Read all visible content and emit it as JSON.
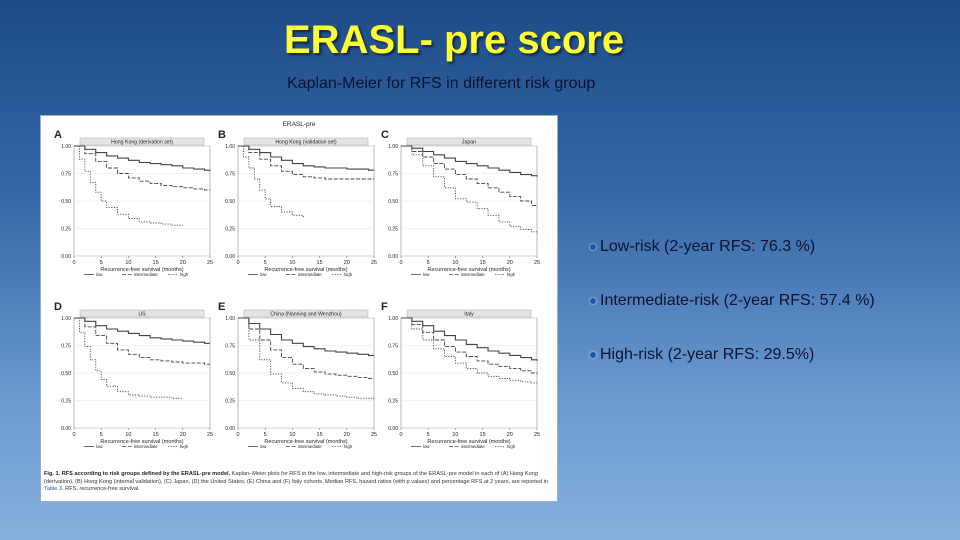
{
  "slide": {
    "title": "ERASL- pre score",
    "subtitle": "Kaplan-Meier for RFS in different risk group"
  },
  "bullets": [
    "Low-risk (2-year RFS: 76.3 %)",
    "Intermediate-risk (2-year RFS: 57.4 %)",
    "High-risk (2-year RFS: 29.5%)"
  ],
  "figure": {
    "header": "ERASL-pre",
    "caption_bold": "Fig. 1. RFS according to risk groups defined by the ERASL-pre model.",
    "caption_text_1": "Kaplan–Meier plots for RFS in the low, intermediate and high-risk groups of the ERASL-pre model in each of (A) Hong Kong (derivation), (B) Hong Kong (internal validation), (C) Japan, (D) the United States, (E) China and (F) Italy cohorts. Median RFS, hazard ratios (with p values) and percentage RFS at 2 years, are reported in",
    "caption_ref": "Table 3",
    "caption_text_2": ". RFS, recurrence-free survival."
  },
  "colors": {
    "title": "#ffff33",
    "curve": "#444444"
  },
  "chart_data": [
    {
      "type": "line",
      "panel": "A",
      "title": "Hong Kong (derivation set)",
      "xlabel": "Recurrence-free survival (months)",
      "ylabel": "",
      "xlim": [
        0,
        25
      ],
      "ylim": [
        0,
        1
      ],
      "xticks": [
        "0",
        "5",
        "10",
        "15",
        "20",
        "25"
      ],
      "yticks": [
        "0.00",
        "0.25",
        "0.50",
        "0.75",
        "1.00"
      ],
      "legend": [
        "low",
        "intermediate",
        "high"
      ],
      "series": [
        {
          "name": "low",
          "x": [
            0,
            2,
            4,
            6,
            8,
            10,
            12,
            14,
            16,
            18,
            20,
            22,
            24,
            25
          ],
          "y": [
            1.0,
            0.97,
            0.94,
            0.91,
            0.89,
            0.87,
            0.85,
            0.84,
            0.83,
            0.82,
            0.8,
            0.79,
            0.78,
            0.77
          ]
        },
        {
          "name": "intermediate",
          "x": [
            0,
            2,
            4,
            6,
            8,
            10,
            12,
            14,
            16,
            18,
            20,
            22,
            24,
            25
          ],
          "y": [
            1.0,
            0.93,
            0.86,
            0.8,
            0.75,
            0.71,
            0.68,
            0.66,
            0.64,
            0.63,
            0.62,
            0.61,
            0.6,
            0.6
          ]
        },
        {
          "name": "high",
          "x": [
            0,
            1,
            2,
            3,
            4,
            5,
            6,
            8,
            10,
            12,
            14,
            16,
            18,
            20
          ],
          "y": [
            1.0,
            0.88,
            0.77,
            0.67,
            0.58,
            0.5,
            0.44,
            0.38,
            0.34,
            0.31,
            0.3,
            0.29,
            0.28,
            0.28
          ]
        }
      ]
    },
    {
      "type": "line",
      "panel": "B",
      "title": "Hong Kong (validation set)",
      "xlabel": "Recurrence-free survival (months)",
      "ylabel": "",
      "xlim": [
        0,
        25
      ],
      "ylim": [
        0,
        1
      ],
      "xticks": [
        "0",
        "5",
        "10",
        "15",
        "20",
        "25"
      ],
      "yticks": [
        "0.00",
        "0.25",
        "0.50",
        "0.75",
        "1.00"
      ],
      "legend": [
        "low",
        "intermediate",
        "high"
      ],
      "series": [
        {
          "name": "low",
          "x": [
            0,
            2,
            4,
            6,
            8,
            10,
            12,
            14,
            16,
            18,
            20,
            22,
            24,
            25
          ],
          "y": [
            1.0,
            0.97,
            0.94,
            0.9,
            0.87,
            0.84,
            0.82,
            0.81,
            0.8,
            0.8,
            0.79,
            0.79,
            0.78,
            0.78
          ]
        },
        {
          "name": "intermediate",
          "x": [
            0,
            2,
            4,
            6,
            8,
            10,
            12,
            14,
            16,
            18,
            20,
            22,
            24,
            25
          ],
          "y": [
            1.0,
            0.94,
            0.88,
            0.82,
            0.77,
            0.74,
            0.72,
            0.71,
            0.7,
            0.7,
            0.7,
            0.7,
            0.7,
            0.7
          ]
        },
        {
          "name": "high",
          "x": [
            0,
            1,
            2,
            3,
            4,
            5,
            6,
            8,
            10,
            12
          ],
          "y": [
            1.0,
            0.9,
            0.8,
            0.7,
            0.6,
            0.52,
            0.45,
            0.4,
            0.37,
            0.35
          ]
        }
      ]
    },
    {
      "type": "line",
      "panel": "C",
      "title": "Japan",
      "xlabel": "Recurrence-free survival (months)",
      "ylabel": "",
      "xlim": [
        0,
        25
      ],
      "ylim": [
        0,
        1
      ],
      "xticks": [
        "0",
        "5",
        "10",
        "15",
        "20",
        "25"
      ],
      "yticks": [
        "0.00",
        "0.25",
        "0.50",
        "0.75",
        "1.00"
      ],
      "legend": [
        "low",
        "intermediate",
        "high"
      ],
      "series": [
        {
          "name": "low",
          "x": [
            0,
            2,
            4,
            6,
            8,
            10,
            12,
            14,
            16,
            18,
            20,
            22,
            24,
            25
          ],
          "y": [
            1.0,
            0.98,
            0.95,
            0.92,
            0.89,
            0.86,
            0.84,
            0.82,
            0.8,
            0.78,
            0.76,
            0.74,
            0.73,
            0.72
          ]
        },
        {
          "name": "intermediate",
          "x": [
            0,
            2,
            4,
            6,
            8,
            10,
            12,
            14,
            16,
            18,
            20,
            22,
            24,
            25
          ],
          "y": [
            1.0,
            0.95,
            0.9,
            0.84,
            0.79,
            0.74,
            0.7,
            0.66,
            0.62,
            0.58,
            0.54,
            0.5,
            0.46,
            0.45
          ]
        },
        {
          "name": "high",
          "x": [
            0,
            2,
            4,
            6,
            8,
            10,
            12,
            14,
            16,
            18,
            20,
            22,
            24,
            25
          ],
          "y": [
            1.0,
            0.92,
            0.82,
            0.72,
            0.62,
            0.52,
            0.49,
            0.43,
            0.37,
            0.31,
            0.27,
            0.24,
            0.22,
            0.2
          ]
        }
      ]
    },
    {
      "type": "line",
      "panel": "D",
      "title": "US",
      "xlabel": "Recurrence-free survival (months)",
      "ylabel": "",
      "xlim": [
        0,
        25
      ],
      "ylim": [
        0,
        1
      ],
      "xticks": [
        "0",
        "5",
        "10",
        "15",
        "20",
        "25"
      ],
      "yticks": [
        "0.00",
        "0.25",
        "0.50",
        "0.75",
        "1.00"
      ],
      "legend": [
        "low",
        "intermediate",
        "high"
      ],
      "series": [
        {
          "name": "low",
          "x": [
            0,
            2,
            4,
            6,
            8,
            10,
            12,
            14,
            16,
            18,
            20,
            22,
            24,
            25
          ],
          "y": [
            1.0,
            0.97,
            0.93,
            0.9,
            0.88,
            0.86,
            0.84,
            0.82,
            0.81,
            0.8,
            0.79,
            0.78,
            0.77,
            0.77
          ]
        },
        {
          "name": "intermediate",
          "x": [
            0,
            2,
            4,
            6,
            8,
            10,
            12,
            14,
            16,
            18,
            20,
            22,
            24,
            25
          ],
          "y": [
            1.0,
            0.92,
            0.84,
            0.77,
            0.71,
            0.67,
            0.64,
            0.62,
            0.61,
            0.6,
            0.59,
            0.59,
            0.58,
            0.58
          ]
        },
        {
          "name": "high",
          "x": [
            0,
            1,
            2,
            3,
            4,
            5,
            6,
            8,
            10,
            12,
            14,
            16,
            18,
            20
          ],
          "y": [
            1.0,
            0.87,
            0.74,
            0.62,
            0.52,
            0.44,
            0.38,
            0.33,
            0.3,
            0.29,
            0.28,
            0.28,
            0.27,
            0.27
          ]
        }
      ]
    },
    {
      "type": "line",
      "panel": "E",
      "title": "China (Nanning and Wenzhou)",
      "xlabel": "Recurrence-free survival (months)",
      "ylabel": "",
      "xlim": [
        0,
        25
      ],
      "ylim": [
        0,
        1
      ],
      "xticks": [
        "0",
        "5",
        "10",
        "15",
        "20",
        "25"
      ],
      "yticks": [
        "0.00",
        "0.25",
        "0.50",
        "0.75",
        "1.00"
      ],
      "legend": [
        "low",
        "intermediate",
        "high"
      ],
      "series": [
        {
          "name": "low",
          "x": [
            0,
            2,
            4,
            6,
            8,
            10,
            12,
            14,
            16,
            18,
            20,
            22,
            24,
            25
          ],
          "y": [
            1.0,
            0.95,
            0.9,
            0.85,
            0.8,
            0.77,
            0.74,
            0.72,
            0.7,
            0.69,
            0.68,
            0.67,
            0.66,
            0.66
          ]
        },
        {
          "name": "intermediate",
          "x": [
            0,
            2,
            4,
            6,
            8,
            10,
            12,
            14,
            16,
            18,
            20,
            22,
            24,
            25
          ],
          "y": [
            1.0,
            0.9,
            0.8,
            0.71,
            0.64,
            0.58,
            0.54,
            0.51,
            0.49,
            0.48,
            0.47,
            0.46,
            0.45,
            0.45
          ]
        },
        {
          "name": "high",
          "x": [
            0,
            2,
            4,
            6,
            8,
            10,
            12,
            14,
            16,
            18,
            20,
            22,
            24,
            25
          ],
          "y": [
            1.0,
            0.8,
            0.62,
            0.49,
            0.41,
            0.36,
            0.33,
            0.31,
            0.3,
            0.29,
            0.28,
            0.27,
            0.27,
            0.26
          ]
        }
      ]
    },
    {
      "type": "line",
      "panel": "F",
      "title": "Italy",
      "xlabel": "Recurrence-free survival (months)",
      "ylabel": "",
      "xlim": [
        0,
        25
      ],
      "ylim": [
        0,
        1
      ],
      "xticks": [
        "0",
        "5",
        "10",
        "15",
        "20",
        "25"
      ],
      "yticks": [
        "0.00",
        "0.25",
        "0.50",
        "0.75",
        "1.00"
      ],
      "legend": [
        "low",
        "intermediate",
        "high"
      ],
      "series": [
        {
          "name": "low",
          "x": [
            0,
            2,
            4,
            6,
            8,
            10,
            12,
            14,
            16,
            18,
            20,
            22,
            24,
            25
          ],
          "y": [
            1.0,
            0.97,
            0.93,
            0.88,
            0.84,
            0.8,
            0.76,
            0.73,
            0.7,
            0.68,
            0.66,
            0.64,
            0.62,
            0.61
          ]
        },
        {
          "name": "intermediate",
          "x": [
            0,
            2,
            4,
            6,
            8,
            10,
            12,
            14,
            16,
            18,
            20,
            22,
            24,
            25
          ],
          "y": [
            1.0,
            0.94,
            0.87,
            0.8,
            0.74,
            0.69,
            0.65,
            0.61,
            0.58,
            0.56,
            0.54,
            0.52,
            0.5,
            0.49
          ]
        },
        {
          "name": "high",
          "x": [
            0,
            2,
            4,
            6,
            8,
            10,
            12,
            14,
            16,
            18,
            20,
            22,
            24,
            25
          ],
          "y": [
            1.0,
            0.9,
            0.8,
            0.72,
            0.65,
            0.59,
            0.54,
            0.5,
            0.47,
            0.45,
            0.43,
            0.42,
            0.41,
            0.4
          ]
        }
      ]
    }
  ]
}
